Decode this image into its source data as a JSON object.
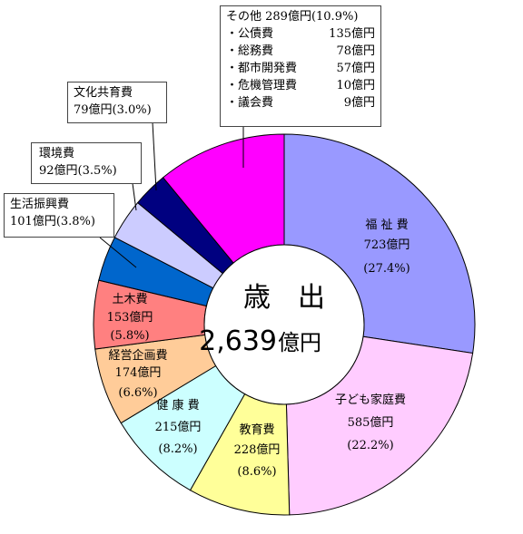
{
  "chart_data": {
    "type": "donut",
    "center": {
      "title": "歳　出",
      "total": "2,639",
      "unit": "億円"
    },
    "slices": [
      {
        "name": "福 祉 費",
        "value": 723,
        "unit": "億円",
        "pct": "(27.4%)",
        "color": "#9999ff"
      },
      {
        "name": "子ども家庭費",
        "value": 585,
        "unit": "億円",
        "pct": "(22.2%)",
        "color": "#ffccff"
      },
      {
        "name": "教育費",
        "value": 228,
        "unit": "億円",
        "pct": "(8.6%)",
        "color": "#ffff99"
      },
      {
        "name": "健 康 費",
        "value": 215,
        "unit": "億円",
        "pct": "(8.2%)",
        "color": "#ccffff"
      },
      {
        "name": "経営企画費",
        "value": 174,
        "unit": "億円",
        "pct": "(6.6%)",
        "color": "#ffcc99"
      },
      {
        "name": "土木費",
        "value": 153,
        "unit": "億円",
        "pct": "(5.8%)",
        "color": "#ff8080"
      },
      {
        "name": "生活振興費",
        "value": 101,
        "unit": "億円",
        "pct": "(3.8%)",
        "color": "#0066cc"
      },
      {
        "name": "環境費",
        "value": 92,
        "unit": "億円",
        "pct": "(3.5%)",
        "color": "#ccccff"
      },
      {
        "name": "文化共育費",
        "value": 79,
        "unit": "億円",
        "pct": "(3.0%)",
        "color": "#000080"
      },
      {
        "name": "その他",
        "value": 289,
        "unit": "億円",
        "pct": "(10.9%)",
        "color": "#ff00ff"
      }
    ],
    "other_breakdown": [
      {
        "name": "・公債費",
        "value": "135億円"
      },
      {
        "name": "・総務費",
        "value": "78億円"
      },
      {
        "name": "・都市開発費",
        "value": "57億円"
      },
      {
        "name": "・危機管理費",
        "value": "10億円"
      },
      {
        "name": "・議会費",
        "value": "9億円"
      }
    ]
  },
  "labels": {
    "fukushi": {
      "name": "福 祉 費",
      "amount": "723億円",
      "pct": "(27.4%)"
    },
    "kodomo": {
      "name": "子ども家庭費",
      "amount": "585億円",
      "pct": "(22.2%)"
    },
    "kyoiku": {
      "name": "教育費",
      "amount": "228億円",
      "pct": "(8.6%)"
    },
    "kenko": {
      "name": "健 康 費",
      "amount": "215億円",
      "pct": "(8.2%)"
    },
    "keiei": {
      "name": "経営企画費",
      "amount": "174億円",
      "pct": "(6.6%)"
    },
    "doboku": {
      "name": "土木費",
      "amount": "153億円",
      "pct": "(5.8%)"
    },
    "seikatsu": {
      "name": "生活振興費",
      "amount_pct": "101億円(3.8%)"
    },
    "kankyo": {
      "name": "環境費",
      "amount_pct": "92億円(3.5%)"
    },
    "bunka": {
      "name": "文化共育費",
      "amount_pct": "79億円(3.0%)"
    },
    "sonota": {
      "header": "その他 289億円(10.9%)"
    }
  }
}
